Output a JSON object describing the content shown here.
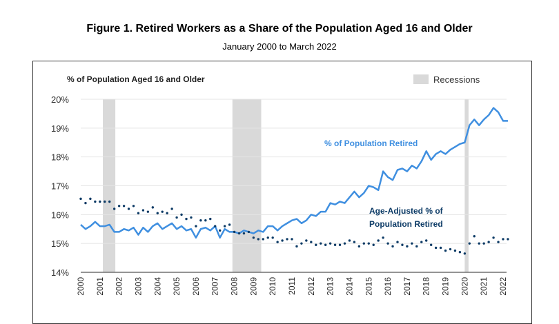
{
  "chart_data": {
    "type": "line",
    "title": "Figure 1. Retired Workers as a Share of the Population Aged 16 and Older",
    "subtitle": "January 2000 to March 2022",
    "ylabel": "% of Population Aged 16 and Older",
    "xlabel": "",
    "ylim": [
      14,
      20
    ],
    "xlim": [
      2000,
      2022.3
    ],
    "yticks": [
      "14%",
      "15%",
      "16%",
      "17%",
      "18%",
      "19%",
      "20%"
    ],
    "xticks": [
      "2000",
      "2001",
      "2002",
      "2003",
      "2004",
      "2005",
      "2006",
      "2007",
      "2008",
      "2009",
      "2010",
      "2011",
      "2012",
      "2013",
      "2014",
      "2015",
      "2016",
      "2017",
      "2018",
      "2019",
      "2020",
      "2021",
      "2022"
    ],
    "grid": "horizontal",
    "legend": {
      "label": "Recessions",
      "placement": "top-right",
      "color": "#d9d9d9"
    },
    "recessions": [
      [
        2001.15,
        2001.8
      ],
      [
        2007.9,
        2009.4
      ],
      [
        2020.0,
        2020.2
      ]
    ],
    "x": [
      2000,
      2000.25,
      2000.5,
      2000.75,
      2001,
      2001.25,
      2001.5,
      2001.75,
      2002,
      2002.25,
      2002.5,
      2002.75,
      2003,
      2003.25,
      2003.5,
      2003.75,
      2004,
      2004.25,
      2004.5,
      2004.75,
      2005,
      2005.25,
      2005.5,
      2005.75,
      2006,
      2006.25,
      2006.5,
      2006.75,
      2007,
      2007.25,
      2007.5,
      2007.75,
      2008,
      2008.25,
      2008.5,
      2008.75,
      2009,
      2009.25,
      2009.5,
      2009.75,
      2010,
      2010.25,
      2010.5,
      2010.75,
      2011,
      2011.25,
      2011.5,
      2011.75,
      2012,
      2012.25,
      2012.5,
      2012.75,
      2013,
      2013.25,
      2013.5,
      2013.75,
      2014,
      2014.25,
      2014.5,
      2014.75,
      2015,
      2015.25,
      2015.5,
      2015.75,
      2016,
      2016.25,
      2016.5,
      2016.75,
      2017,
      2017.25,
      2017.5,
      2017.75,
      2018,
      2018.25,
      2018.5,
      2018.75,
      2019,
      2019.25,
      2019.5,
      2019.75,
      2020,
      2020.25,
      2020.5,
      2020.75,
      2021,
      2021.25,
      2021.5,
      2021.75,
      2022,
      2022.25
    ],
    "series": [
      {
        "name": "% of Population Retired",
        "style": "line",
        "color": "#3f8fe0",
        "values": [
          15.65,
          15.5,
          15.6,
          15.75,
          15.6,
          15.6,
          15.65,
          15.4,
          15.4,
          15.5,
          15.45,
          15.55,
          15.3,
          15.55,
          15.4,
          15.6,
          15.7,
          15.5,
          15.6,
          15.7,
          15.5,
          15.6,
          15.45,
          15.5,
          15.2,
          15.5,
          15.55,
          15.45,
          15.6,
          15.2,
          15.5,
          15.4,
          15.4,
          15.35,
          15.45,
          15.4,
          15.35,
          15.45,
          15.4,
          15.6,
          15.6,
          15.45,
          15.6,
          15.7,
          15.8,
          15.85,
          15.7,
          15.8,
          16.0,
          15.95,
          16.1,
          16.1,
          16.4,
          16.35,
          16.45,
          16.4,
          16.6,
          16.8,
          16.6,
          16.75,
          17.0,
          16.95,
          16.85,
          17.5,
          17.3,
          17.2,
          17.55,
          17.6,
          17.5,
          17.7,
          17.6,
          17.85,
          18.2,
          17.9,
          18.1,
          18.2,
          18.1,
          18.25,
          18.35,
          18.45,
          18.5,
          19.1,
          19.3,
          19.1,
          19.3,
          19.45,
          19.7,
          19.55,
          19.25,
          19.25
        ]
      },
      {
        "name": "Age-Adjusted % of Population Retired",
        "name_line1": "Age-Adjusted % of",
        "name_line2": "Population Retired",
        "style": "dotted",
        "color": "#0d3b66",
        "values": [
          16.55,
          16.4,
          16.55,
          16.45,
          16.45,
          16.45,
          16.45,
          16.2,
          16.3,
          16.3,
          16.2,
          16.3,
          16.05,
          16.15,
          16.1,
          16.25,
          16.05,
          16.1,
          16.05,
          16.2,
          15.9,
          16.0,
          15.85,
          15.9,
          15.6,
          15.8,
          15.8,
          15.85,
          15.6,
          15.45,
          15.6,
          15.65,
          15.4,
          15.35,
          15.35,
          15.4,
          15.2,
          15.15,
          15.15,
          15.2,
          15.2,
          15.05,
          15.1,
          15.15,
          15.15,
          14.9,
          15.0,
          15.1,
          15.05,
          14.95,
          15.0,
          14.95,
          15.0,
          14.95,
          14.95,
          15.0,
          15.1,
          15.05,
          14.9,
          15.0,
          15.0,
          14.95,
          15.1,
          15.2,
          15.0,
          14.9,
          15.05,
          14.95,
          14.9,
          15.0,
          14.9,
          15.05,
          15.1,
          14.95,
          14.85,
          14.85,
          14.75,
          14.8,
          14.75,
          14.7,
          14.65,
          15.0,
          15.25,
          15.0,
          15.0,
          15.05,
          15.2,
          15.05,
          15.15,
          15.15
        ]
      }
    ]
  }
}
